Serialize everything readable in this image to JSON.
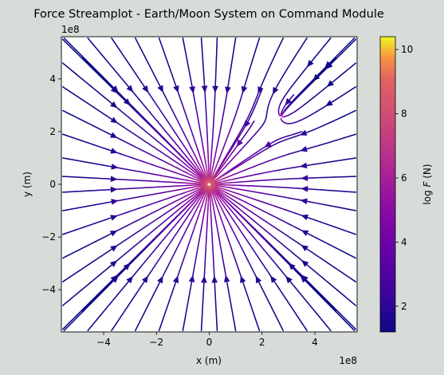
{
  "chart_data": {
    "type": "streamplot",
    "title": "Force Streamplot - Earth/Moon System on Command Module",
    "xlabel": "x (m)",
    "ylabel": "y (m)",
    "x_offset_text": "1e8",
    "y_offset_text": "1e8",
    "xlim": [
      -5.6,
      5.6
    ],
    "ylim": [
      -5.6,
      5.6
    ],
    "axis_scale_note": "axis values in units of 1e8 m",
    "xticks": [
      {
        "value": -4,
        "label": "−4"
      },
      {
        "value": -2,
        "label": "−2"
      },
      {
        "value": 0,
        "label": "0"
      },
      {
        "value": 2,
        "label": "2"
      },
      {
        "value": 4,
        "label": "4"
      }
    ],
    "yticks": [
      {
        "value": -4,
        "label": "−4"
      },
      {
        "value": -2,
        "label": "−2"
      },
      {
        "value": 0,
        "label": "0"
      },
      {
        "value": 2,
        "label": "2"
      },
      {
        "value": 4,
        "label": "4"
      }
    ],
    "earth_position": [
      0,
      0
    ],
    "moon_position": [
      2.7,
      2.55
    ],
    "colormap": "plasma",
    "colorbar": {
      "label": "log F (N)",
      "label_plain": "log ",
      "label_italic": "F",
      "label_suffix": " (N)",
      "range": [
        1.2,
        10.4
      ],
      "ticks": [
        {
          "value": 2,
          "label": "2"
        },
        {
          "value": 4,
          "label": "4"
        },
        {
          "value": 6,
          "label": "6"
        },
        {
          "value": 8,
          "label": "8"
        },
        {
          "value": 10,
          "label": "10"
        }
      ]
    },
    "grid": false
  },
  "colors": {
    "background": "#d7dcd8",
    "axes_face": "#ffffff"
  }
}
